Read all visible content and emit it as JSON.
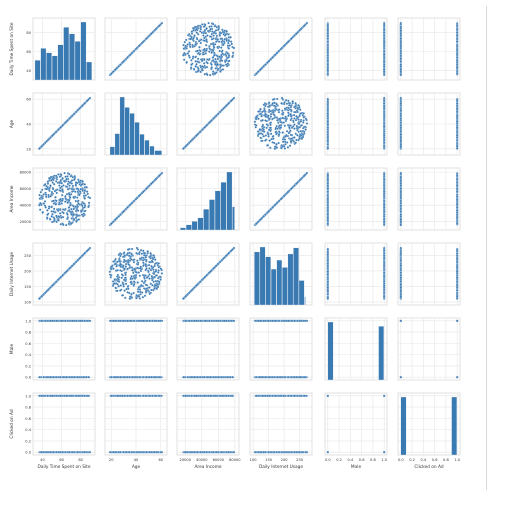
{
  "chart_data": {
    "type": "pairplot",
    "variables": [
      "Daily Time Spent on Site",
      "Age",
      "Area Income",
      "Daily Internet Usage",
      "Male",
      "Clicked on Ad"
    ],
    "colors": {
      "marker": "#3a7ab3",
      "grid": "#e6e6e6",
      "frame": "#cfcfcf",
      "background": "#eaeaf2"
    },
    "grid": true,
    "ranges": [
      [
        30,
        95
      ],
      [
        15,
        65
      ],
      [
        10000,
        85000
      ],
      [
        90,
        290
      ],
      [
        -0.05,
        1.05
      ],
      [
        -0.05,
        1.05
      ]
    ],
    "ticks": [
      [
        {
          "v": 40,
          "t": "40"
        },
        {
          "v": 60,
          "t": "60"
        },
        {
          "v": 80,
          "t": "80"
        }
      ],
      [
        {
          "v": 20,
          "t": "20"
        },
        {
          "v": 40,
          "t": "40"
        },
        {
          "v": 60,
          "t": "60"
        }
      ],
      [
        {
          "v": 20000,
          "t": "20000"
        },
        {
          "v": 40000,
          "t": "40000"
        },
        {
          "v": 60000,
          "t": "60000"
        },
        {
          "v": 80000,
          "t": "80000"
        }
      ],
      [
        {
          "v": 100,
          "t": "100"
        },
        {
          "v": 150,
          "t": "150"
        },
        {
          "v": 200,
          "t": "200"
        },
        {
          "v": 250,
          "t": "250"
        }
      ],
      [
        {
          "v": 0.0,
          "t": "0.0"
        },
        {
          "v": 0.2,
          "t": "0.2"
        },
        {
          "v": 0.4,
          "t": "0.4"
        },
        {
          "v": 0.6,
          "t": "0.6"
        },
        {
          "v": 0.8,
          "t": "0.8"
        },
        {
          "v": 1.0,
          "t": "1.0"
        }
      ],
      [
        {
          "v": 0.0,
          "t": "0.0"
        },
        {
          "v": 0.2,
          "t": "0.2"
        },
        {
          "v": 0.4,
          "t": "0.4"
        },
        {
          "v": 0.6,
          "t": "0.6"
        },
        {
          "v": 0.8,
          "t": "0.8"
        },
        {
          "v": 1.0,
          "t": "1.0"
        }
      ]
    ],
    "histograms": [
      {
        "bin_edges": [
          32,
          38,
          44,
          50,
          56,
          62,
          68,
          74,
          80,
          86,
          92
        ],
        "counts": [
          45,
          72,
          62,
          55,
          80,
          120,
          105,
          88,
          132,
          41
        ]
      },
      {
        "bin_edges": [
          19,
          23,
          27,
          31,
          35,
          39,
          43,
          47,
          51,
          55,
          61
        ],
        "counts": [
          28,
          72,
          195,
          160,
          140,
          110,
          70,
          50,
          30,
          15
        ]
      },
      {
        "bin_edges": [
          14000,
          21000,
          28000,
          35000,
          42000,
          49000,
          56000,
          63000,
          70000,
          77000,
          80000
        ],
        "counts": [
          8,
          18,
          30,
          42,
          72,
          105,
          135,
          165,
          200,
          80
        ]
      },
      {
        "bin_edges": [
          104,
          122,
          140,
          158,
          176,
          194,
          212,
          230,
          248,
          266,
          270
        ],
        "counts": [
          130,
          142,
          118,
          88,
          110,
          92,
          125,
          140,
          60,
          20
        ]
      },
      {
        "bin_edges": [
          0,
          0.1,
          0.9,
          1.0
        ],
        "counts": [
          519,
          0,
          481
        ]
      },
      {
        "bin_edges": [
          0,
          0.1,
          0.9,
          1.0
        ],
        "counts": [
          500,
          0,
          500
        ]
      }
    ],
    "n_points": 380,
    "label_text_color": "#333333"
  }
}
